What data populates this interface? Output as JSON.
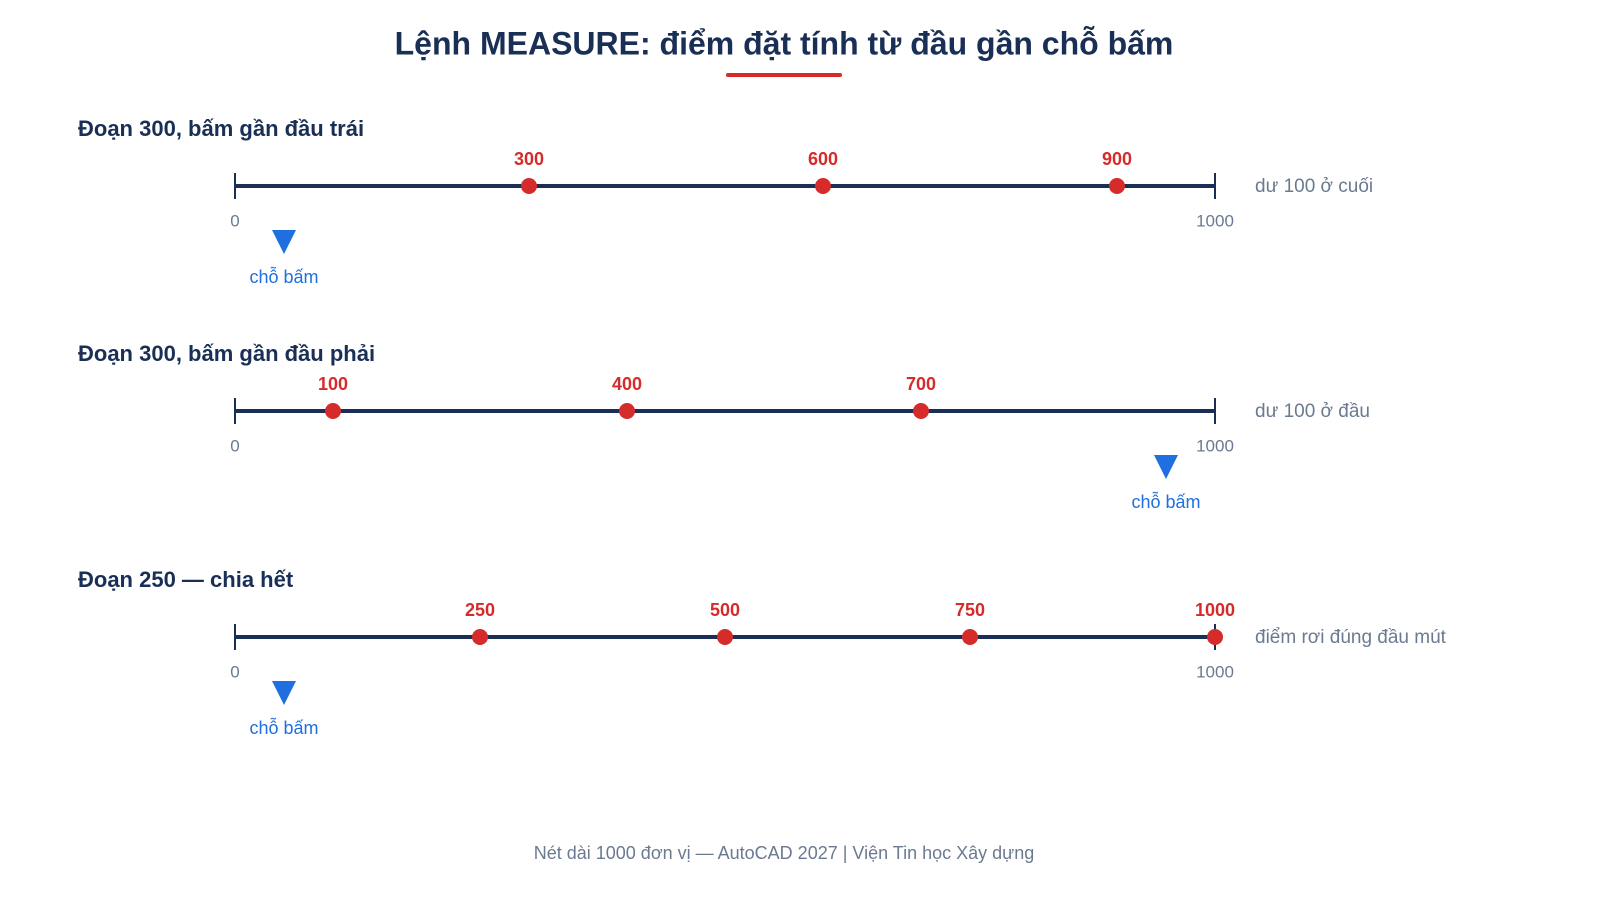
{
  "title": "Lệnh MEASURE: điểm đặt tính từ đầu gần chỗ bấm",
  "rows": [
    {
      "heading": "Đoạn 300, bấm gần đầu trái",
      "range": [
        0,
        1000
      ],
      "points": [
        300,
        600,
        900
      ],
      "click": 50,
      "click_label": "chỗ bấm",
      "note": "dư 100 ở cuối"
    },
    {
      "heading": "Đoạn 300, bấm gần đầu phải",
      "range": [
        0,
        1000
      ],
      "points": [
        100,
        400,
        700
      ],
      "click": 950,
      "click_label": "chỗ bấm",
      "note": "dư 100 ở đầu"
    },
    {
      "heading": "Đoạn 250 — chia hết",
      "range": [
        0,
        1000
      ],
      "points": [
        250,
        500,
        750,
        1000
      ],
      "click": 50,
      "click_label": "chỗ bấm",
      "note": "điểm rơi đúng đầu mút"
    }
  ],
  "footer": "Nét dài 1000 đơn vị — AutoCAD 2027 | Viện Tin học Xây dựng"
}
